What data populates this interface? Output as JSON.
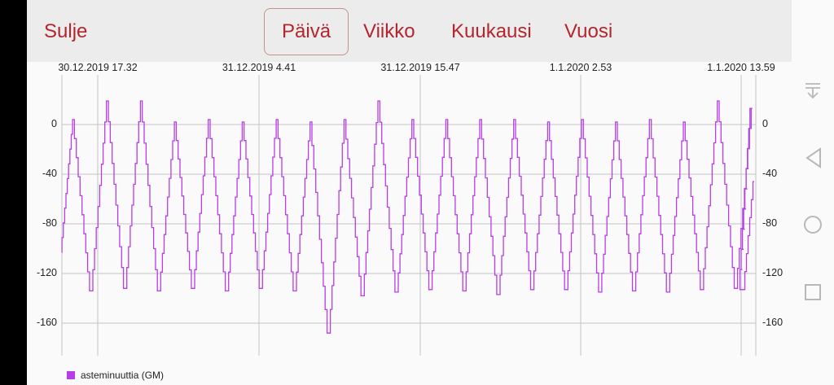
{
  "toolbar": {
    "close_label": "Sulje",
    "tabs": [
      {
        "label": "Päivä",
        "active": true
      },
      {
        "label": "Viikko",
        "active": false
      },
      {
        "label": "Kuukausi",
        "active": false
      },
      {
        "label": "Vuosi",
        "active": false
      }
    ]
  },
  "colors": {
    "accent": "#b3262d",
    "series": "#b63de8",
    "topbar_bg": "#ececec"
  },
  "system_nav": {
    "icons": [
      "notification-pull-icon",
      "back-icon",
      "home-icon",
      "recents-icon"
    ]
  },
  "chart_data": {
    "type": "line",
    "title": "",
    "xlabel": "",
    "ylabel": "",
    "x_tick_labels": [
      "30.12.2019 17.32",
      "31.12.2019 4.41",
      "31.12.2019 15.47",
      "1.1.2020 2.53",
      "1.1.2020 13.59"
    ],
    "y_ticks": [
      0,
      -40,
      -80,
      -120,
      -160
    ],
    "ylim": [
      -185,
      25
    ],
    "grid": true,
    "legend_position": "bottom-left",
    "series": [
      {
        "name": "asteminuuttia (GM)",
        "color": "#b63de8",
        "description": "Oscillating daily-cycle series with ~20 peaks; peaks around 0 to +20, troughs around -130 to -168",
        "peaks": [
          4,
          19,
          19,
          2,
          4,
          2,
          4,
          2,
          4,
          19,
          4,
          4,
          4,
          4,
          2,
          4,
          2,
          4,
          2,
          19,
          13
        ],
        "troughs": [
          -103,
          -134,
          -132,
          -134,
          -132,
          -134,
          -132,
          -134,
          -168,
          -138,
          -135,
          -133,
          -134,
          -137,
          -133,
          -133,
          -135,
          -134,
          -135,
          -133,
          -132
        ],
        "end_value": -46
      }
    ]
  },
  "legend": {
    "label": "asteminuuttia (GM)"
  }
}
